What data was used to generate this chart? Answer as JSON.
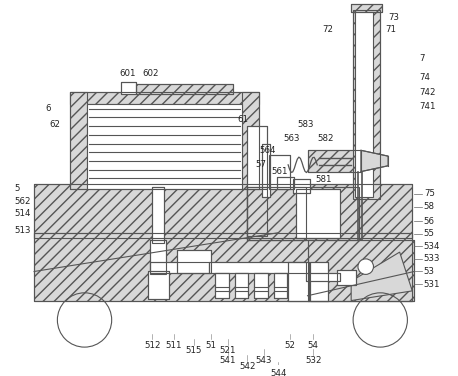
{
  "bg_color": "#ffffff",
  "lc": "#555555",
  "hc": "#bbbbbb",
  "fs": 6.0
}
